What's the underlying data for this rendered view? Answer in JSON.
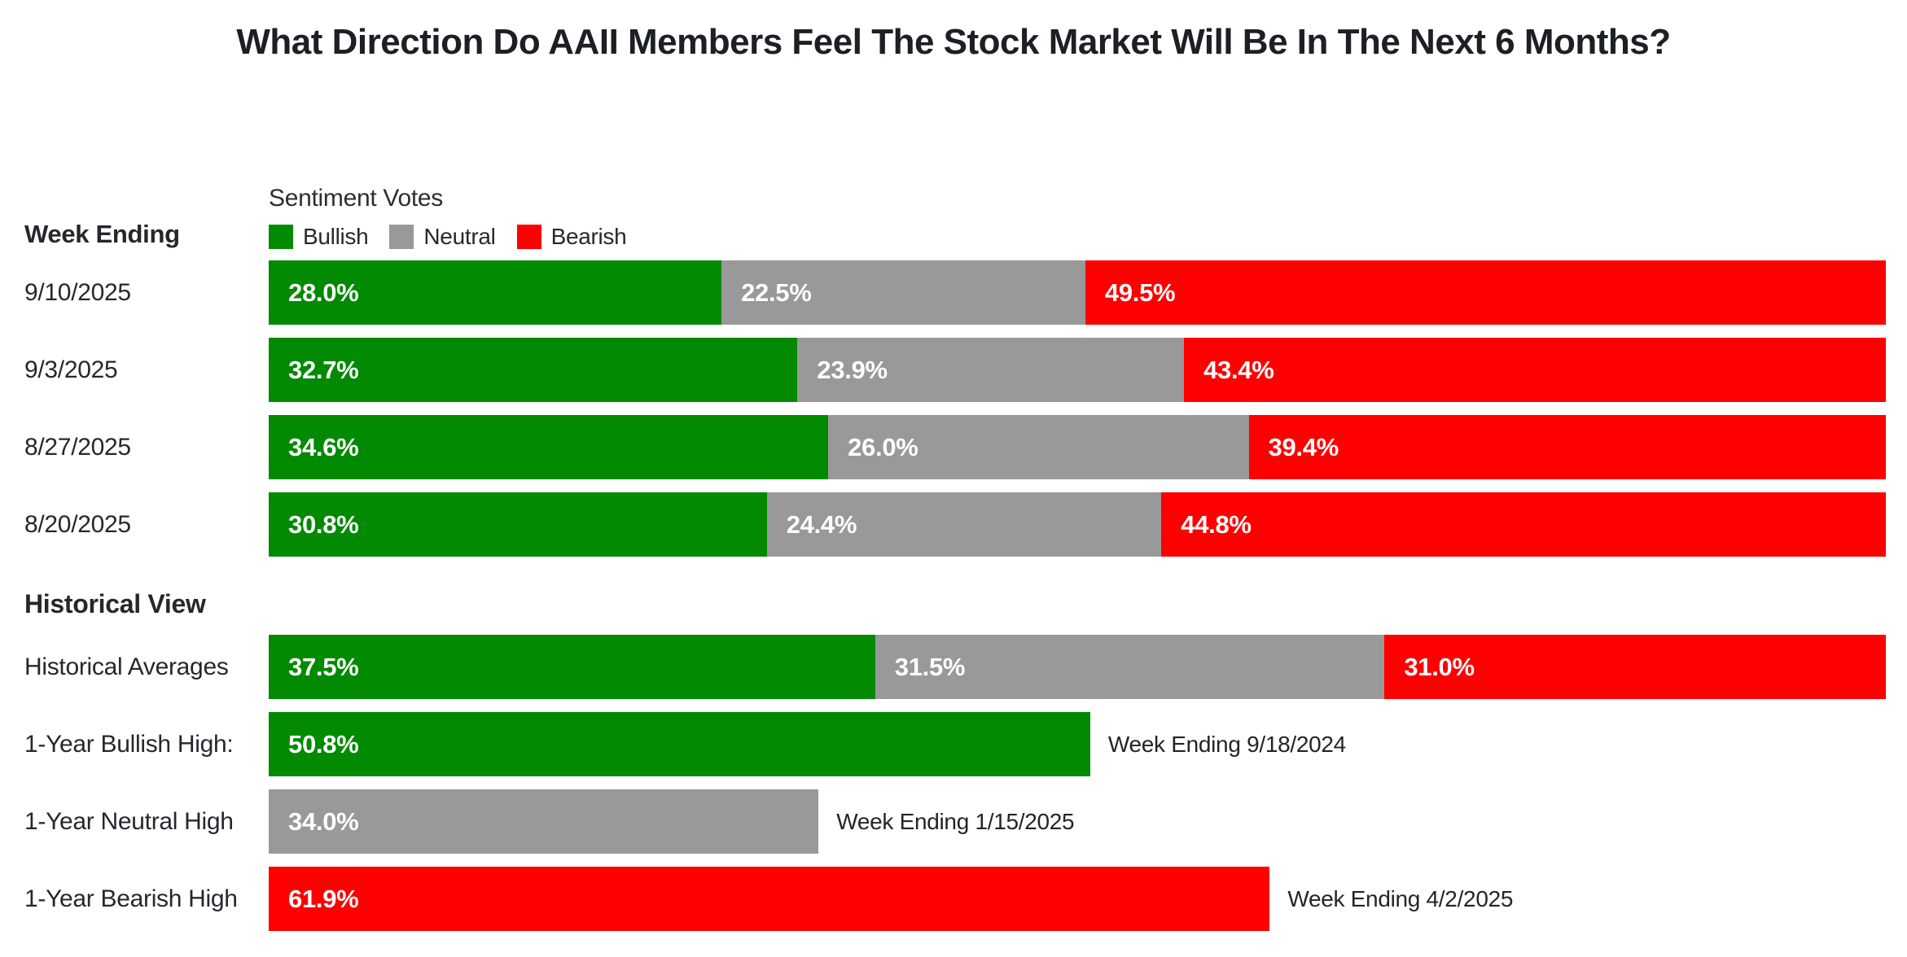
{
  "title": "What Direction Do AAII Members Feel The Stock Market Will Be In The Next 6 Months?",
  "colors": {
    "bullish": "#028a02",
    "neutral": "#999999",
    "bearish": "#fe0000"
  },
  "header": {
    "week_ending_label": "Week Ending",
    "legend_title": "Sentiment Votes",
    "legend": [
      {
        "label": "Bullish",
        "color_key": "bullish"
      },
      {
        "label": "Neutral",
        "color_key": "neutral"
      },
      {
        "label": "Bearish",
        "color_key": "bearish"
      }
    ]
  },
  "historical_heading": "Historical View",
  "chart_data": {
    "type": "bar",
    "orientation": "horizontal-stacked",
    "title": "What Direction Do AAII Members Feel The Stock Market Will Be In The Next 6 Months?",
    "series_names": [
      "Bullish",
      "Neutral",
      "Bearish"
    ],
    "value_unit": "percent",
    "xlim": [
      0,
      100
    ],
    "grid": false,
    "legend_position": "top",
    "weekly_rows": [
      {
        "label": "9/10/2025",
        "bullish": 28.0,
        "neutral": 22.5,
        "bearish": 49.5
      },
      {
        "label": "9/3/2025",
        "bullish": 32.7,
        "neutral": 23.9,
        "bearish": 43.4
      },
      {
        "label": "8/27/2025",
        "bullish": 34.6,
        "neutral": 26.0,
        "bearish": 39.4
      },
      {
        "label": "8/20/2025",
        "bullish": 30.8,
        "neutral": 24.4,
        "bearish": 44.8
      }
    ],
    "historical_rows": [
      {
        "label": "Historical Averages",
        "bullish": 37.5,
        "neutral": 31.5,
        "bearish": 31.0
      },
      {
        "label": "1-Year Bullish High:",
        "series": "bullish",
        "value": 50.8,
        "annotation": "Week Ending 9/18/2024"
      },
      {
        "label": "1-Year Neutral High",
        "series": "neutral",
        "value": 34.0,
        "annotation": "Week Ending 1/15/2025"
      },
      {
        "label": "1-Year Bearish High",
        "series": "bearish",
        "value": 61.9,
        "annotation": "Week Ending 4/2/2025"
      }
    ]
  }
}
